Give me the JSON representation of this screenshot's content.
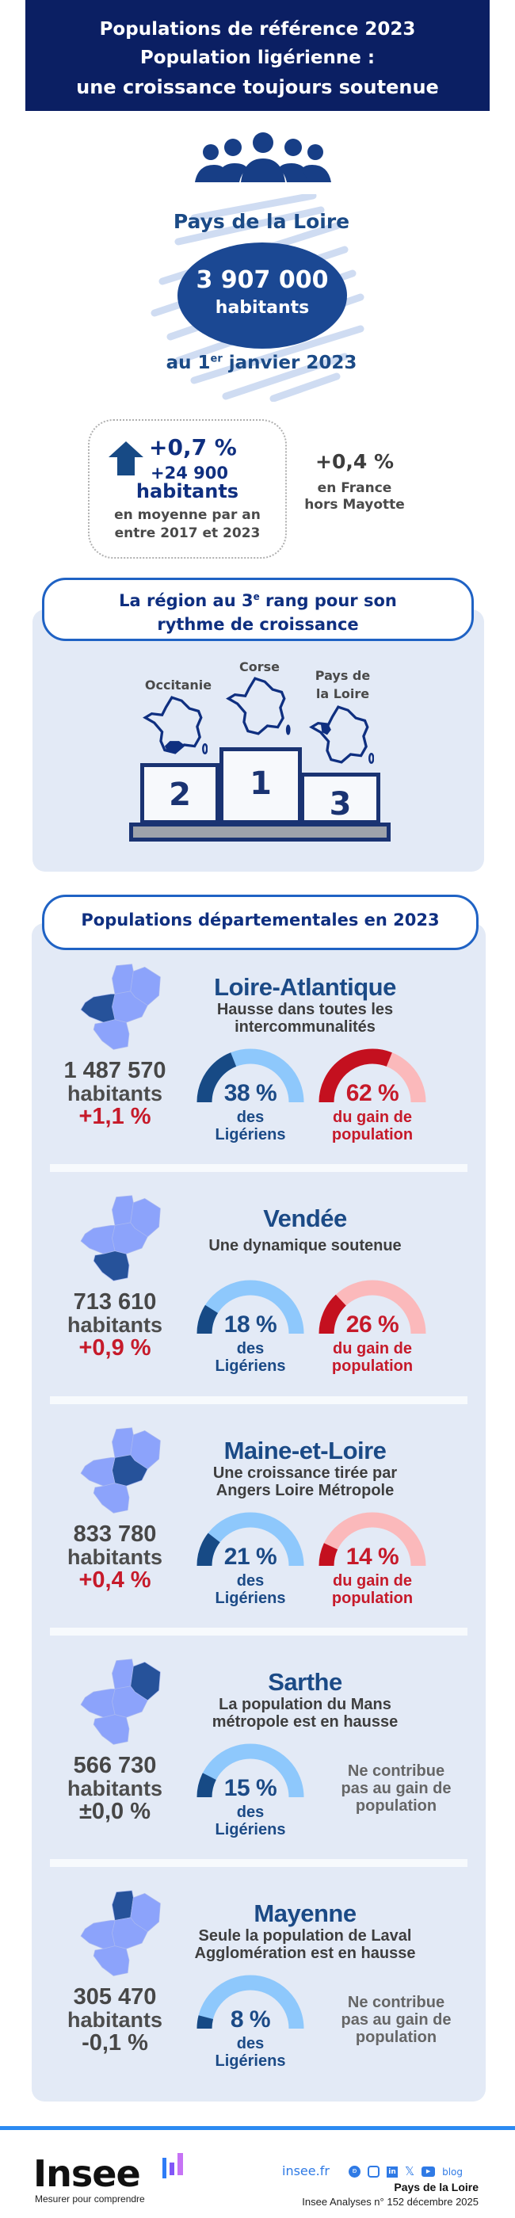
{
  "header": {
    "lines": [
      "Populations de référence 2023",
      "Population ligérienne :",
      "une croissance toujours soutenue"
    ]
  },
  "region": {
    "name": "Pays de la Loire",
    "population": "3 907 000",
    "unit": "habitants",
    "date_prefix": "au 1",
    "date_sup": "er",
    "date_suffix": " janvier 2023"
  },
  "growth": {
    "rate": "+0,7 %",
    "gain": "+24 900",
    "unit": "habitants",
    "note_line1": "en moyenne par an",
    "note_line2": "entre 2017 et 2023",
    "icon": "arrow-up-icon"
  },
  "france": {
    "rate": "+0,4 %",
    "line1": "en France",
    "line2": "hors Mayotte"
  },
  "ranking": {
    "title_part1": "La région au 3",
    "title_sup": "e",
    "title_part2": " rang pour son",
    "title_line2": "rythme de croissance",
    "podium": [
      {
        "rank": "2",
        "label": "Occitanie"
      },
      {
        "rank": "1",
        "label": "Corse"
      },
      {
        "rank": "3",
        "label_line1": "Pays de",
        "label_line2": "la Loire"
      }
    ]
  },
  "departments": {
    "title": "Populations départementales en 2023",
    "items": [
      {
        "name": "Loire-Atlantique",
        "subtitle": [
          "Hausse dans toutes les",
          "intercommunalités"
        ],
        "population": "1 487 570",
        "unit": "habitants",
        "change": "+1,1 %",
        "share_pct": 38,
        "share_label": "38 %",
        "share_caption": [
          "des",
          "Ligériens"
        ],
        "gain_pct": 62,
        "gain_label": "62 %",
        "gain_caption": [
          "du gain de",
          "population"
        ],
        "highlight": "loire-atlantique"
      },
      {
        "name": "Vendée",
        "subtitle": [
          "Une dynamique soutenue"
        ],
        "population": "713 610",
        "unit": "habitants",
        "change": "+0,9 %",
        "share_pct": 18,
        "share_label": "18 %",
        "share_caption": [
          "des",
          "Ligériens"
        ],
        "gain_pct": 26,
        "gain_label": "26 %",
        "gain_caption": [
          "du gain de",
          "population"
        ],
        "highlight": "vendee"
      },
      {
        "name": "Maine-et-Loire",
        "subtitle": [
          "Une croissance tirée par",
          "Angers Loire Métropole"
        ],
        "population": "833 780",
        "unit": "habitants",
        "change": "+0,4 %",
        "share_pct": 21,
        "share_label": "21 %",
        "share_caption": [
          "des",
          "Ligériens"
        ],
        "gain_pct": 14,
        "gain_label": "14 %",
        "gain_caption": [
          "du gain de",
          "population"
        ],
        "highlight": "maine-et-loire"
      },
      {
        "name": "Sarthe",
        "subtitle": [
          "La population du Mans",
          "métropole est en hausse"
        ],
        "population": "566 730",
        "unit": "habitants",
        "change": "±0,0 %",
        "share_pct": 15,
        "share_label": "15 %",
        "share_caption": [
          "des",
          "Ligériens"
        ],
        "no_contribution": [
          "Ne contribue",
          "pas au gain de",
          "population"
        ],
        "highlight": "sarthe"
      },
      {
        "name": "Mayenne",
        "subtitle": [
          "Seule la population de Laval",
          "Agglomération est en hausse"
        ],
        "population": "305 470",
        "unit": "habitants",
        "change": "-0,1 %",
        "share_pct": 8,
        "share_label": "8 %",
        "share_caption": [
          "des",
          "Ligériens"
        ],
        "no_contribution": [
          "Ne contribue",
          "pas au gain de",
          "population"
        ],
        "highlight": "mayenne"
      }
    ]
  },
  "colors": {
    "navy": "#0b1f63",
    "blue": "#1b4a86",
    "light_blue": "#8ec8fc",
    "red": "#c61a2a",
    "pink": "#fbb9bb",
    "map_highlight": "#26529a",
    "map_other": "#8ca3fb",
    "panel": "#e3eaf6"
  },
  "footer": {
    "logo_text": "Insee",
    "tagline": "Mesurer pour comprendre",
    "site": "insee.fr",
    "blog": "blog",
    "social_icons": [
      "bluesky-icon",
      "instagram-icon",
      "linkedin-icon",
      "x-icon",
      "youtube-icon"
    ],
    "region": "Pays de la Loire",
    "publication": "Insee Analyses n° 152 décembre 2025"
  }
}
